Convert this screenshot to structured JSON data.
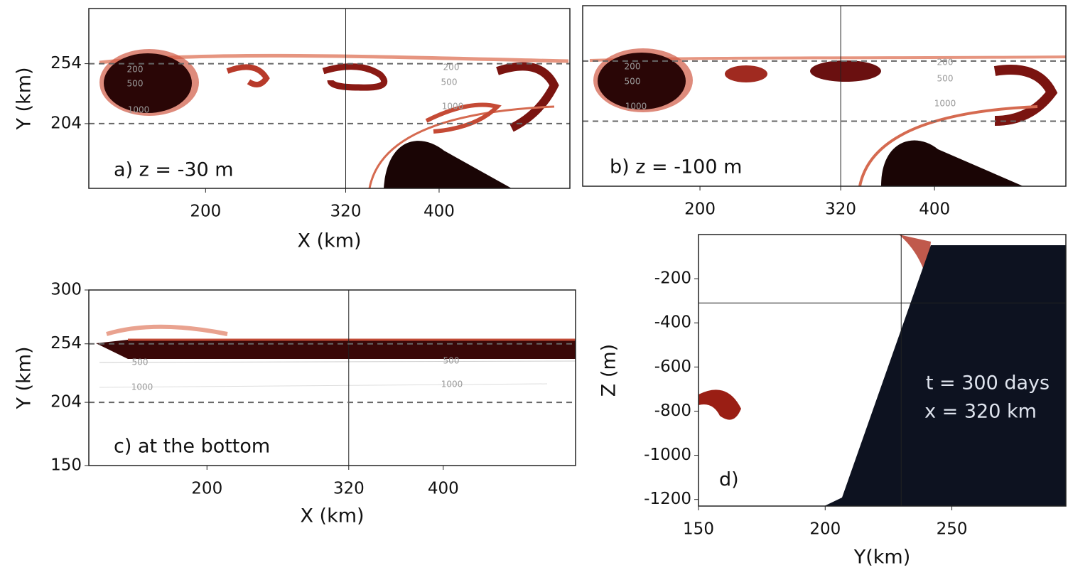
{
  "chart_data": [
    {
      "type": "field",
      "panel_label": "a) z = -30 m",
      "xlabel": "X (km)",
      "ylabel": "Y (km)",
      "xlim": [
        100,
        512
      ],
      "xticks": [
        200,
        320,
        400
      ],
      "ylim": [
        150,
        300
      ],
      "yticks": [
        254,
        204
      ],
      "hlines": [
        254,
        204
      ],
      "vlines": [
        320
      ],
      "contour_labels": [
        "200",
        "500",
        "1000",
        "200",
        "500",
        "1000"
      ]
    },
    {
      "type": "field",
      "panel_label": "b) z = -100 m",
      "xlim": [
        100,
        512
      ],
      "xticks": [
        200,
        320,
        400
      ],
      "ylim": [
        150,
        300
      ],
      "hlines": [
        254,
        204
      ],
      "vlines": [
        320
      ],
      "contour_labels": [
        "200",
        "500",
        "1000",
        "200",
        "500",
        "1000"
      ]
    },
    {
      "type": "field",
      "panel_label": "c) at the bottom",
      "xlabel": "X (km)",
      "ylabel": "Y (km)",
      "xlim": [
        100,
        512
      ],
      "xticks": [
        200,
        320,
        400
      ],
      "ylim": [
        150,
        300
      ],
      "yticks": [
        300,
        254,
        204,
        150
      ],
      "hlines": [
        254,
        204
      ],
      "vlines": [
        320
      ],
      "contour_labels": [
        "500",
        "1000",
        "500",
        "1000"
      ]
    },
    {
      "type": "field",
      "panel_label": "d)",
      "xlabel": "Y(km)",
      "ylabel": "Z (m)",
      "xlim": [
        150,
        295
      ],
      "xticks": [
        150,
        200,
        250
      ],
      "ylim": [
        -1230,
        0
      ],
      "yticks": [
        -200,
        -400,
        -600,
        -800,
        -1000,
        -1200
      ],
      "hlines": [
        -310
      ],
      "vlines": [
        230
      ],
      "annotations": [
        "t = 300 days",
        "x = 320 km"
      ]
    }
  ]
}
